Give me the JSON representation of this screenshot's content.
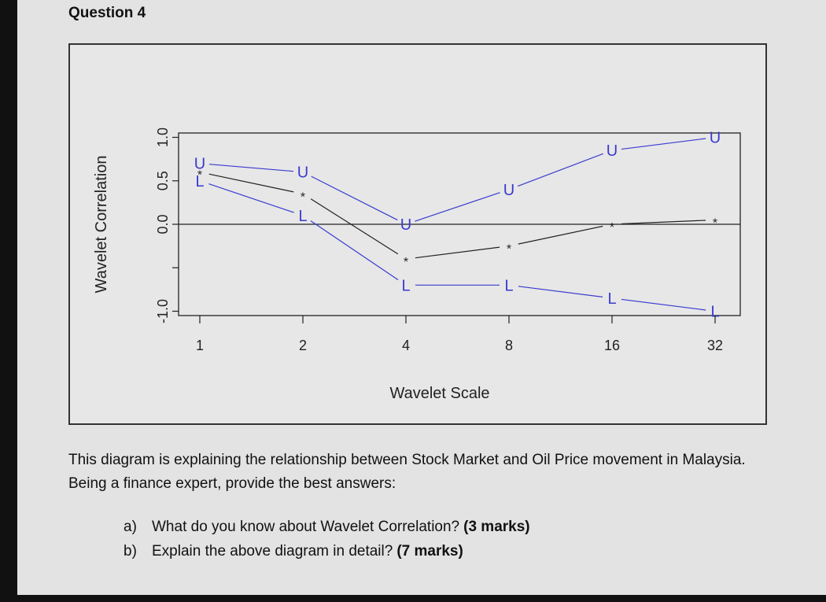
{
  "question": {
    "title": "Question 4",
    "intro_text": "This diagram is explaining the relationship between Stock Market and Oil Price movement in Malaysia. Being a finance expert, provide the best answers:",
    "items": [
      {
        "letter": "a)",
        "text": "What do you know about Wavelet Correlation?",
        "marks": "(3 marks)"
      },
      {
        "letter": "b)",
        "text": "Explain the above diagram in detail?",
        "marks": "(7 marks)"
      }
    ]
  },
  "chart_data": {
    "type": "line",
    "title": "",
    "xlabel": "Wavelet Scale",
    "ylabel": "Wavelet Correlation",
    "x": [
      1,
      2,
      4,
      8,
      16,
      32
    ],
    "x_tick_labels": [
      "1",
      "2",
      "4",
      "8",
      "16",
      "32"
    ],
    "ylim": [
      -1.05,
      1.05
    ],
    "y_ticks": [
      -1.0,
      -0.5,
      0.0,
      0.5,
      1.0
    ],
    "y_tick_labels": [
      "-1.0",
      "",
      "0.0",
      "0.5",
      "1.0"
    ],
    "reference_line": 0.0,
    "series": [
      {
        "name": "U",
        "marker": "U",
        "values": [
          0.7,
          0.6,
          0.0,
          0.4,
          0.85,
          1.0
        ]
      },
      {
        "name": "*",
        "marker": "*",
        "values": [
          0.6,
          0.35,
          -0.4,
          -0.25,
          0.0,
          0.05
        ]
      },
      {
        "name": "L",
        "marker": "L",
        "values": [
          0.5,
          0.1,
          -0.7,
          -0.7,
          -0.85,
          -1.0
        ]
      }
    ],
    "colors": {
      "U": "#3a3ad0",
      "*": "#222222",
      "L": "#3a3ad0",
      "axis": "#222222",
      "connector": "#3a3ad0"
    }
  }
}
